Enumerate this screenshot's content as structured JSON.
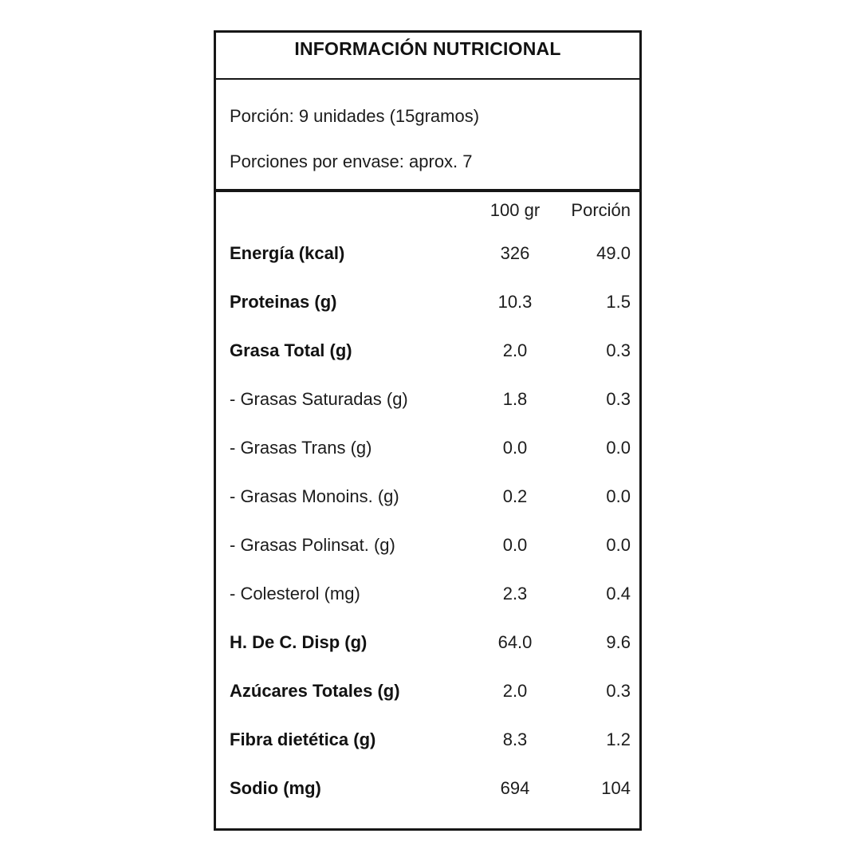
{
  "title": "INFORMACIÓN NUTRICIONAL",
  "serving": {
    "portion_line": "Porción: 9 unidades (15gramos)",
    "servings_line": "Porciones por envase: aprox. 7"
  },
  "table": {
    "columns": {
      "per100": "100 gr",
      "portion": "Porción"
    },
    "rows": [
      {
        "label": "Energía (kcal)",
        "per100": "326",
        "portion": "49.0"
      },
      {
        "label": "Proteinas (g)",
        "per100": "10.3",
        "portion": "1.5"
      },
      {
        "label": "Grasa Total (g)",
        "per100": "2.0",
        "portion": "0.3"
      },
      {
        "label": "- Grasas Saturadas (g)",
        "per100": "1.8",
        "portion": "0.3"
      },
      {
        "label": "- Grasas Trans (g)",
        "per100": "0.0",
        "portion": "0.0"
      },
      {
        "label": "- Grasas Monoins. (g)",
        "per100": "0.2",
        "portion": "0.0"
      },
      {
        "label": "- Grasas Polinsat. (g)",
        "per100": "0.0",
        "portion": "0.0"
      },
      {
        "label": "- Colesterol (mg)",
        "per100": "2.3",
        "portion": "0.4"
      },
      {
        "label": "H. De C. Disp (g)",
        "per100": "64.0",
        "portion": "9.6"
      },
      {
        "label": "Azúcares Totales (g)",
        "per100": "2.0",
        "portion": "0.3"
      },
      {
        "label": "Fibra dietética (g)",
        "per100": "8.3",
        "portion": "1.2"
      },
      {
        "label": "Sodio (mg)",
        "per100": "694",
        "portion": "104"
      }
    ]
  },
  "colors": {
    "border": "#161616",
    "text": "#1c1c1c",
    "background": "#ffffff"
  }
}
